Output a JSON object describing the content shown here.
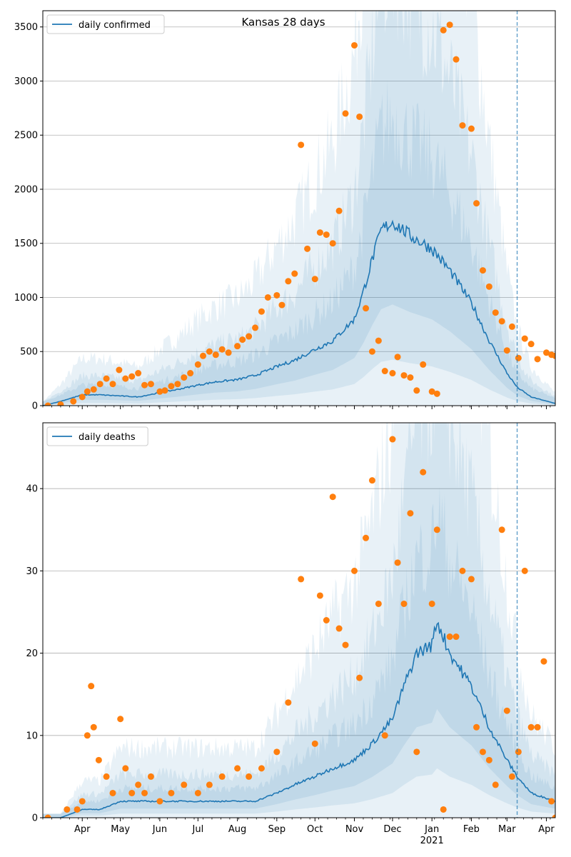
{
  "figure": {
    "suptitle": "Kansas 28 days"
  },
  "colors": {
    "line": "#1f77b4",
    "points": "#ff7f0e",
    "band": "#1f77b4",
    "grid": "#b0b0b0",
    "axis": "#000000",
    "vline": "#1f77b4"
  },
  "x_axis": {
    "ticks": [
      "Apr",
      "May",
      "Jun",
      "Jul",
      "Aug",
      "Sep",
      "Oct",
      "Nov",
      "Dec",
      "Jan",
      "Feb",
      "Mar",
      "Apr"
    ],
    "year_label": "2021"
  },
  "chart_data": [
    {
      "type": "line",
      "legend": "daily confirmed",
      "legend_position": "top-left",
      "grid": "horizontal",
      "xlim": [
        "2020-03-01",
        "2021-04-08"
      ],
      "ylim": [
        0,
        3650
      ],
      "yticks": [
        0,
        500,
        1000,
        1500,
        2000,
        2500,
        3000,
        3500
      ],
      "forecast_start": "2021-03-09",
      "series": [
        {
          "kind": "line",
          "x": [
            "2020-03-01",
            "2020-03-15",
            "2020-04-01",
            "2020-04-15",
            "2020-05-01",
            "2020-05-15",
            "2020-06-01",
            "2020-06-15",
            "2020-07-01",
            "2020-07-15",
            "2020-08-01",
            "2020-08-15",
            "2020-09-01",
            "2020-09-15",
            "2020-10-01",
            "2020-10-15",
            "2020-11-01",
            "2020-11-08",
            "2020-11-15",
            "2020-11-22",
            "2020-12-01",
            "2020-12-15",
            "2021-01-01",
            "2021-01-15",
            "2021-02-01",
            "2021-02-15",
            "2021-03-01",
            "2021-03-09",
            "2021-03-20",
            "2021-04-08"
          ],
          "y": [
            0,
            40,
            100,
            100,
            90,
            80,
            120,
            150,
            190,
            220,
            240,
            280,
            360,
            420,
            520,
            600,
            800,
            1050,
            1350,
            1620,
            1700,
            1570,
            1450,
            1250,
            950,
            600,
            300,
            170,
            80,
            20
          ]
        },
        {
          "kind": "scatter",
          "x": [
            "2020-03-05",
            "2020-03-15",
            "2020-03-25",
            "2020-04-01",
            "2020-04-05",
            "2020-04-10",
            "2020-04-15",
            "2020-04-20",
            "2020-04-25",
            "2020-04-30",
            "2020-05-05",
            "2020-05-10",
            "2020-05-15",
            "2020-05-20",
            "2020-05-25",
            "2020-06-01",
            "2020-06-05",
            "2020-06-10",
            "2020-06-15",
            "2020-06-20",
            "2020-06-25",
            "2020-07-01",
            "2020-07-05",
            "2020-07-10",
            "2020-07-15",
            "2020-07-20",
            "2020-07-25",
            "2020-08-01",
            "2020-08-05",
            "2020-08-10",
            "2020-08-15",
            "2020-08-20",
            "2020-08-25",
            "2020-09-01",
            "2020-09-05",
            "2020-09-10",
            "2020-09-15",
            "2020-09-20",
            "2020-09-25",
            "2020-10-01",
            "2020-10-05",
            "2020-10-10",
            "2020-10-15",
            "2020-10-20",
            "2020-10-25",
            "2020-11-01",
            "2020-11-05",
            "2020-11-10",
            "2020-11-15",
            "2020-11-20",
            "2020-11-25",
            "2020-12-01",
            "2020-12-05",
            "2020-12-10",
            "2020-12-15",
            "2020-12-20",
            "2020-12-25",
            "2021-01-01",
            "2021-01-05",
            "2021-01-10",
            "2021-01-15",
            "2021-01-20",
            "2021-01-25",
            "2021-02-01",
            "2021-02-05",
            "2021-02-10",
            "2021-02-15",
            "2021-02-20",
            "2021-02-25",
            "2021-03-01",
            "2021-03-05",
            "2021-03-10",
            "2021-03-15",
            "2021-03-20",
            "2021-03-25",
            "2021-04-01",
            "2021-04-05",
            "2021-04-08"
          ],
          "y": [
            0,
            10,
            40,
            80,
            130,
            150,
            200,
            250,
            200,
            330,
            250,
            270,
            300,
            190,
            200,
            130,
            140,
            180,
            200,
            260,
            300,
            380,
            460,
            500,
            470,
            520,
            490,
            550,
            610,
            640,
            720,
            870,
            1000,
            1020,
            930,
            1150,
            1220,
            2410,
            1450,
            1170,
            1600,
            1580,
            1500,
            1800,
            2700,
            3330,
            2670,
            900,
            500,
            600,
            320,
            300,
            450,
            280,
            260,
            140,
            380,
            130,
            110,
            3470,
            3520,
            3200,
            2590,
            2560,
            1870,
            1250,
            1100,
            860,
            780,
            510,
            730,
            440,
            620,
            570,
            430,
            490,
            470,
            460
          ]
        }
      ]
    },
    {
      "type": "line",
      "legend": "daily deaths",
      "legend_position": "top-left",
      "grid": "horizontal",
      "xlim": [
        "2020-03-01",
        "2021-04-08"
      ],
      "ylim": [
        0,
        48
      ],
      "yticks": [
        0,
        10,
        20,
        30,
        40
      ],
      "forecast_start": "2021-03-09",
      "series": [
        {
          "kind": "line",
          "x": [
            "2020-03-01",
            "2020-03-15",
            "2020-04-01",
            "2020-04-15",
            "2020-05-01",
            "2020-05-15",
            "2020-06-01",
            "2020-06-15",
            "2020-07-01",
            "2020-07-15",
            "2020-08-01",
            "2020-08-15",
            "2020-09-01",
            "2020-09-15",
            "2020-10-01",
            "2020-10-15",
            "2020-11-01",
            "2020-11-15",
            "2020-12-01",
            "2020-12-10",
            "2020-12-20",
            "2021-01-01",
            "2021-01-05",
            "2021-01-15",
            "2021-02-01",
            "2021-02-15",
            "2021-03-01",
            "2021-03-09",
            "2021-03-20",
            "2021-04-08"
          ],
          "y": [
            0,
            0,
            1,
            1,
            2,
            2,
            2,
            2,
            2,
            2,
            2,
            2,
            3,
            4,
            5,
            6,
            7,
            9,
            12,
            16,
            20,
            21,
            24,
            20,
            16,
            11,
            7,
            5,
            3,
            2
          ]
        },
        {
          "kind": "scatter",
          "x": [
            "2020-03-05",
            "2020-03-20",
            "2020-03-28",
            "2020-04-01",
            "2020-04-05",
            "2020-04-08",
            "2020-04-10",
            "2020-04-14",
            "2020-04-20",
            "2020-04-25",
            "2020-05-01",
            "2020-05-05",
            "2020-05-10",
            "2020-05-15",
            "2020-05-20",
            "2020-05-25",
            "2020-06-01",
            "2020-06-10",
            "2020-06-20",
            "2020-07-01",
            "2020-07-10",
            "2020-07-20",
            "2020-08-01",
            "2020-08-10",
            "2020-08-20",
            "2020-09-01",
            "2020-09-10",
            "2020-09-20",
            "2020-10-01",
            "2020-10-05",
            "2020-10-10",
            "2020-10-15",
            "2020-10-20",
            "2020-10-25",
            "2020-11-01",
            "2020-11-05",
            "2020-11-10",
            "2020-11-15",
            "2020-11-20",
            "2020-11-25",
            "2020-12-01",
            "2020-12-05",
            "2020-12-10",
            "2020-12-15",
            "2020-12-20",
            "2020-12-25",
            "2021-01-01",
            "2021-01-05",
            "2021-01-10",
            "2021-01-15",
            "2021-01-20",
            "2021-01-25",
            "2021-02-01",
            "2021-02-05",
            "2021-02-10",
            "2021-02-15",
            "2021-02-20",
            "2021-02-25",
            "2021-03-01",
            "2021-03-05",
            "2021-03-10",
            "2021-03-15",
            "2021-03-20",
            "2021-03-25",
            "2021-03-30",
            "2021-04-05",
            "2021-04-08"
          ],
          "y": [
            0,
            1,
            1,
            2,
            10,
            16,
            11,
            7,
            5,
            3,
            12,
            6,
            3,
            4,
            3,
            5,
            2,
            3,
            4,
            3,
            4,
            5,
            6,
            5,
            6,
            8,
            14,
            29,
            9,
            27,
            24,
            39,
            23,
            21,
            30,
            17,
            34,
            41,
            26,
            10,
            46,
            31,
            26,
            37,
            8,
            42,
            26,
            35,
            1,
            22,
            22,
            30,
            29,
            11,
            8,
            7,
            4,
            35,
            13,
            5,
            8,
            30,
            11,
            11,
            19,
            2,
            0
          ]
        }
      ]
    }
  ]
}
